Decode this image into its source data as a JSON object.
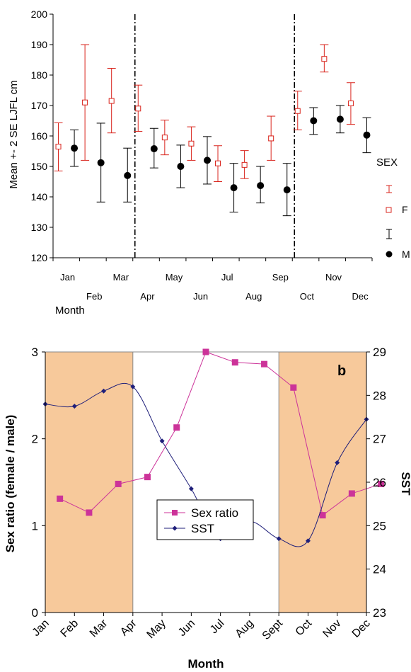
{
  "chart_data": [
    {
      "type": "errorbar",
      "panel": "a",
      "title": "",
      "xlabel": "Month",
      "ylabel": "Mean +- 2 SE   LJFL cm",
      "ylim": [
        120,
        200
      ],
      "yticks": [
        120,
        130,
        140,
        150,
        160,
        170,
        180,
        190,
        200
      ],
      "categories": [
        "Jan",
        "Feb",
        "Mar",
        "Apr",
        "May",
        "Jun",
        "Jul",
        "Aug",
        "Sep",
        "Oct",
        "Nov",
        "Dec"
      ],
      "legend_title": "SEX",
      "legend_labels": [
        "F",
        "M"
      ],
      "vertical_dividers_after": [
        "Mar",
        "Sep"
      ],
      "series": [
        {
          "name": "F",
          "color": "#d9241c",
          "marker": "open-square",
          "mean": [
            156.5,
            171,
            171.5,
            169,
            159.5,
            157.5,
            151,
            150.5,
            159.2,
            168.2,
            185.3,
            170.7
          ],
          "lower": [
            148.5,
            152,
            161,
            161.5,
            153.8,
            152,
            145,
            146,
            152,
            162,
            181,
            163.8
          ],
          "upper": [
            164.3,
            190,
            182.2,
            176.7,
            165.2,
            163,
            156.8,
            155.2,
            166.5,
            174.7,
            190,
            177.5
          ]
        },
        {
          "name": "M",
          "color": "#000000",
          "marker": "filled-circle",
          "mean": [
            156,
            151.2,
            147,
            155.8,
            150,
            152,
            143,
            143.7,
            142.3,
            165,
            165.5,
            160.3
          ],
          "lower": [
            150,
            138.3,
            138.3,
            149.5,
            143,
            144.2,
            135,
            138,
            133.8,
            160.5,
            161,
            154.5
          ],
          "upper": [
            162,
            164.2,
            156,
            162.5,
            157,
            159.8,
            151,
            150,
            151,
            169.3,
            170,
            166
          ]
        }
      ]
    },
    {
      "type": "line",
      "panel": "b",
      "title": "b",
      "xlabel": "Month",
      "ylabel": "Sex ratio (female / male)",
      "y2label": "SST",
      "ylim": [
        0,
        3
      ],
      "yticks": [
        0,
        1,
        2,
        3
      ],
      "y2lim": [
        23,
        29
      ],
      "y2ticks": [
        23,
        24,
        25,
        26,
        27,
        28,
        29
      ],
      "categories": [
        "Jan",
        "Feb",
        "Mar",
        "Apr",
        "May",
        "Jun",
        "Jul",
        "Aug",
        "Sept",
        "Oct",
        "Nov",
        "Dec"
      ],
      "shaded_ranges": [
        [
          "Jan",
          "Apr"
        ],
        [
          "Sept",
          "Dec"
        ]
      ],
      "shade_color": "#f7c99b",
      "series": [
        {
          "name": "Sex ratio",
          "axis": "left",
          "color": "#cc3399",
          "marker": "square",
          "x": [
            0.5,
            1.5,
            2.5,
            3.5,
            4.5,
            5.5,
            6.5,
            7.5,
            8.5,
            9.5,
            10.5,
            11.5
          ],
          "values": [
            1.31,
            1.15,
            1.48,
            1.56,
            2.13,
            3.0,
            2.88,
            2.86,
            2.59,
            1.12,
            1.37,
            1.48
          ]
        },
        {
          "name": "SST",
          "axis": "right",
          "color": "#1f1f7a",
          "marker": "diamond",
          "x": [
            0,
            1,
            2,
            3,
            4,
            5,
            6,
            7,
            8,
            9,
            10,
            11
          ],
          "values": [
            27.8,
            27.75,
            28.1,
            28.2,
            26.95,
            25.85,
            24.7,
            25.1,
            24.7,
            24.65,
            26.45,
            27.45
          ]
        }
      ],
      "legend_labels": [
        "Sex ratio",
        "SST"
      ]
    }
  ]
}
